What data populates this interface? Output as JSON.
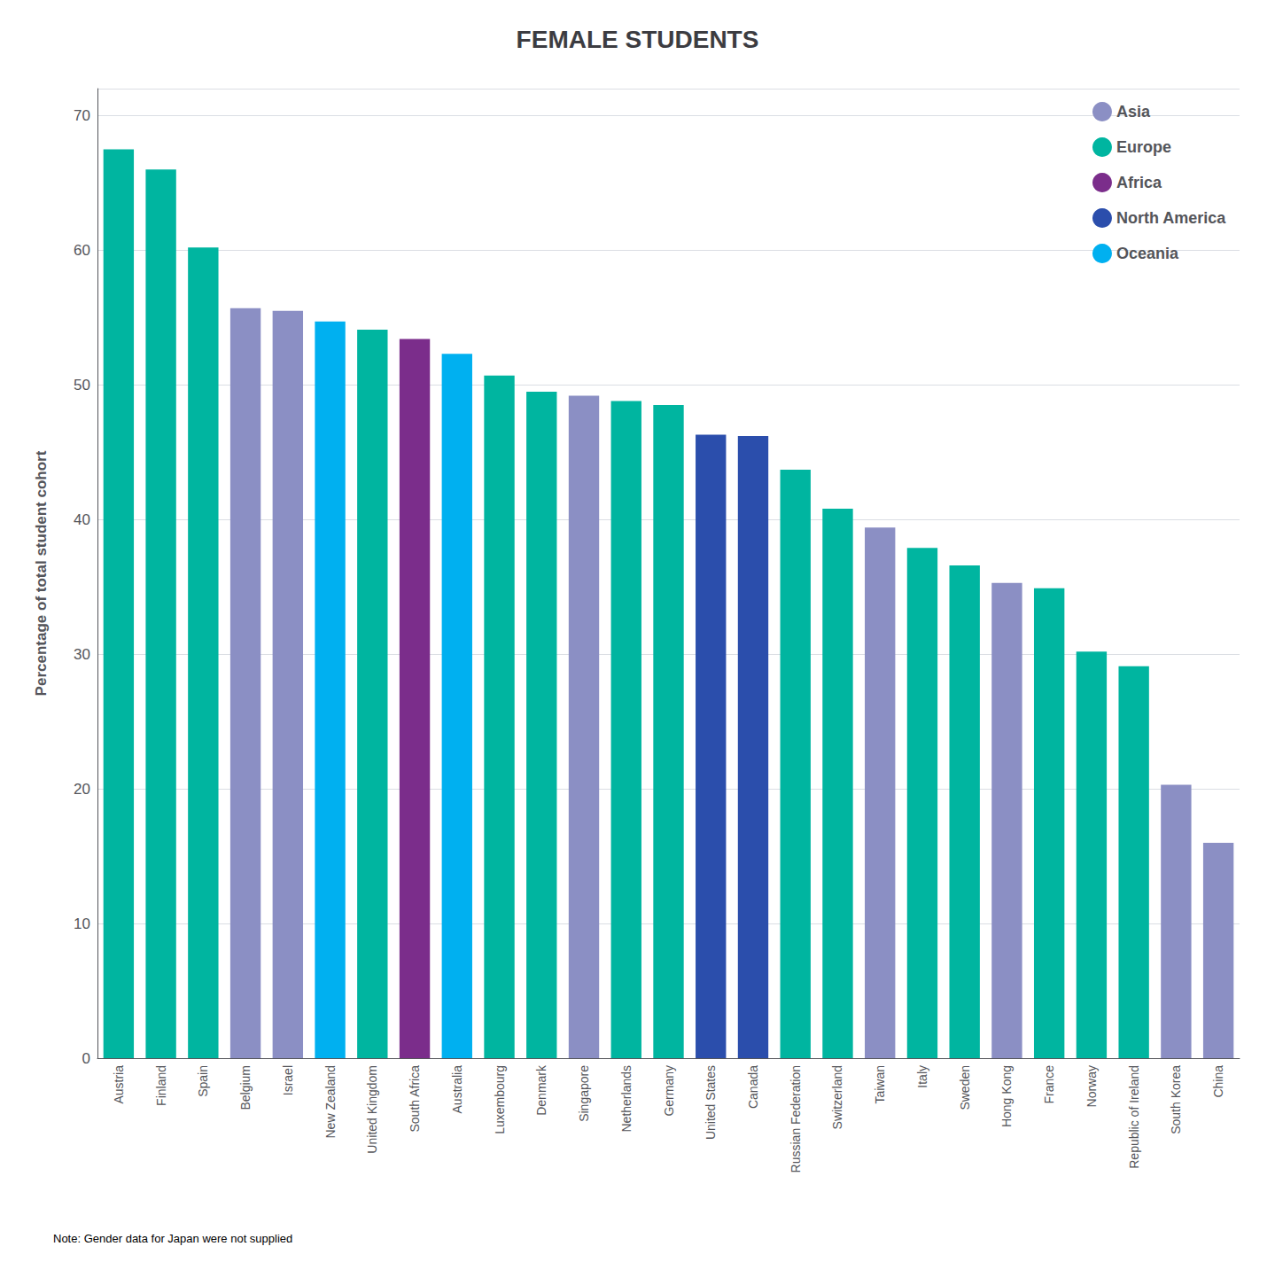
{
  "chart_data": {
    "type": "bar",
    "title": "FEMALE STUDENTS",
    "ylabel": "Percentage of total student cohort",
    "annotations": [
      "Note: Gender data for Japan were not supplied"
    ],
    "categories": [
      "Austria",
      "Finland",
      "Spain",
      "Belgium",
      "Israel",
      "New Zealand",
      "United Kingdom",
      "South Africa",
      "Australia",
      "Luxembourg",
      "Denmark",
      "Singapore",
      "Netherlands",
      "Germany",
      "United States",
      "Canada",
      "Russian Federation",
      "Switzerland",
      "Taiwan",
      "Italy",
      "Sweden",
      "Hong Kong",
      "France",
      "Norway",
      "Republic of Ireland",
      "South Korea",
      "China"
    ],
    "series": [
      {
        "name": "Asia",
        "color": "#8B8FC4",
        "values": [
          null,
          null,
          null,
          55.7,
          55.5,
          null,
          null,
          null,
          null,
          null,
          null,
          49.2,
          null,
          null,
          null,
          null,
          null,
          null,
          39.4,
          null,
          null,
          35.3,
          null,
          null,
          null,
          20.3,
          16.0
        ]
      },
      {
        "name": "Europe",
        "color": "#00B5A0",
        "values": [
          67.5,
          66.0,
          60.2,
          null,
          null,
          null,
          54.1,
          null,
          null,
          50.7,
          49.5,
          null,
          48.8,
          48.5,
          null,
          null,
          43.7,
          40.8,
          null,
          37.9,
          36.6,
          null,
          34.9,
          30.2,
          29.1,
          null,
          null
        ]
      },
      {
        "name": "Africa",
        "color": "#7B2D8B",
        "values": [
          null,
          null,
          null,
          null,
          null,
          null,
          null,
          53.4,
          null,
          null,
          null,
          null,
          null,
          null,
          null,
          null,
          null,
          null,
          null,
          null,
          null,
          null,
          null,
          null,
          null,
          null,
          null
        ]
      },
      {
        "name": "North America",
        "color": "#2B4EAC",
        "values": [
          null,
          null,
          null,
          null,
          null,
          null,
          null,
          null,
          null,
          null,
          null,
          null,
          null,
          null,
          46.3,
          46.2,
          null,
          null,
          null,
          null,
          null,
          null,
          null,
          null,
          null,
          null,
          null
        ]
      },
      {
        "name": "Oceania",
        "color": "#00B0F0",
        "values": [
          null,
          null,
          null,
          null,
          null,
          54.7,
          null,
          null,
          52.3,
          null,
          null,
          null,
          null,
          null,
          null,
          null,
          null,
          null,
          null,
          null,
          null,
          null,
          null,
          null,
          null,
          null,
          null
        ]
      }
    ],
    "ylim": [
      0,
      72
    ],
    "yticks": [
      0,
      10,
      20,
      30,
      40,
      50,
      60,
      70
    ],
    "grid": true,
    "legend": "upper right"
  }
}
